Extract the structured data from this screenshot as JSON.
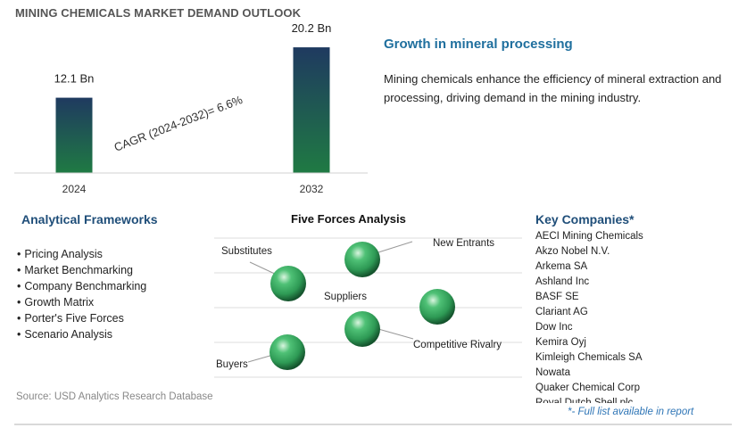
{
  "title": "MINING CHEMICALS MARKET DEMAND OUTLOOK",
  "chart_data": {
    "type": "bar",
    "categories": [
      "2024",
      "2032"
    ],
    "values": [
      12.1,
      20.2
    ],
    "value_labels": [
      "12.1 Bn",
      "20.2 Bn"
    ],
    "title": "",
    "xlabel": "",
    "ylabel": "",
    "ylim": [
      0,
      21.5
    ],
    "grid": false,
    "annotation": "CAGR (2024-2032)=   6.6%",
    "bar_color_top": "#1f3a60",
    "bar_color_bottom": "#1f7a43"
  },
  "growth": {
    "title": "Growth in mineral processing",
    "description": "Mining chemicals enhance the efficiency of mineral extraction and processing, driving demand in the mining industry."
  },
  "frameworks": {
    "title": "Analytical Frameworks",
    "items": [
      "Pricing Analysis",
      "Market Benchmarking",
      "Company Benchmarking",
      "Growth Matrix",
      "Porter's Five Forces",
      "Scenario Analysis"
    ]
  },
  "five_forces": {
    "title": "Five Forces Analysis",
    "forces": [
      "Substitutes",
      "New Entrants",
      "Suppliers",
      "Competitive Rivalry",
      "Buyers"
    ],
    "sphere_color": "#2e9a55"
  },
  "companies": {
    "title": "Key Companies*",
    "items": [
      "AECI Mining Chemicals",
      "Akzo Nobel N.V.",
      "Arkema SA",
      "Ashland Inc",
      "BASF SE",
      "Clariant AG",
      "Dow Inc",
      "Kemira Oyj",
      "Kimleigh Chemicals SA",
      "Nowata",
      "Quaker Chemical Corp",
      "Royal Dutch Shell plc"
    ],
    "note": "*- Full list available in report"
  },
  "source": "Source: USD Analytics Research Database"
}
